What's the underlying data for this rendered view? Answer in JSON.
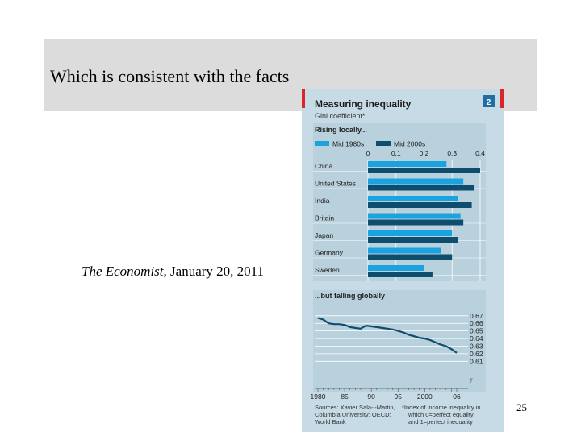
{
  "slide": {
    "title": "Which is consistent with the facts",
    "caption_source": "The Economist",
    "caption_date": ", January 20, 2011",
    "page_number": "25"
  },
  "chart_data": [
    {
      "type": "bar",
      "title": "Measuring inequality",
      "subtitle": "Gini coefficient*",
      "badge": "2",
      "panel_title": "Rising locally...",
      "orientation": "horizontal",
      "categories": [
        "China",
        "United States",
        "India",
        "Britain",
        "Japan",
        "Germany",
        "Sweden"
      ],
      "series": [
        {
          "name": "Mid 1980s",
          "color": "#1aa3df",
          "values": [
            0.28,
            0.34,
            0.32,
            0.33,
            0.3,
            0.26,
            0.2
          ]
        },
        {
          "name": "Mid 2000s",
          "color": "#0e4d6e",
          "values": [
            0.4,
            0.38,
            0.37,
            0.34,
            0.32,
            0.3,
            0.23
          ]
        }
      ],
      "xlim": [
        0,
        0.4
      ],
      "xticks": [
        "0",
        "0.1",
        "0.2",
        "0.3",
        "0.4"
      ],
      "legend": "top"
    },
    {
      "type": "line",
      "panel_title": "...but falling globally",
      "x_tick_labels": [
        "1980",
        "85",
        "90",
        "95",
        "2000",
        "06"
      ],
      "xlim": [
        1980,
        2006
      ],
      "ylim": [
        0.605,
        0.673
      ],
      "y_tick_labels": [
        "0.67",
        "0.66",
        "0.65",
        "0.64",
        "0.63",
        "0.62",
        "0.61"
      ],
      "axis_break_symbol": "⫽",
      "color": "#0e4d6e",
      "series": [
        {
          "x": [
            1980,
            1981,
            1982,
            1983,
            1984,
            1985,
            1986,
            1987,
            1988,
            1989,
            1990,
            1991,
            1992,
            1993,
            1994,
            1995,
            1996,
            1997,
            1998,
            1999,
            2000,
            2001,
            2002,
            2003,
            2004,
            2005,
            2006
          ],
          "values": [
            0.667,
            0.665,
            0.66,
            0.659,
            0.659,
            0.658,
            0.655,
            0.654,
            0.653,
            0.657,
            0.656,
            0.655,
            0.654,
            0.653,
            0.652,
            0.65,
            0.648,
            0.645,
            0.643,
            0.641,
            0.64,
            0.638,
            0.635,
            0.632,
            0.63,
            0.626,
            0.621
          ]
        }
      ],
      "grid": true
    }
  ],
  "sources": {
    "left": "Sources: Xavier Sala-i-Martin, Columbia University; OECD; World Bank",
    "right": "*Index of income inequality in which 0=perfect equality and 1=perfect inequality"
  }
}
